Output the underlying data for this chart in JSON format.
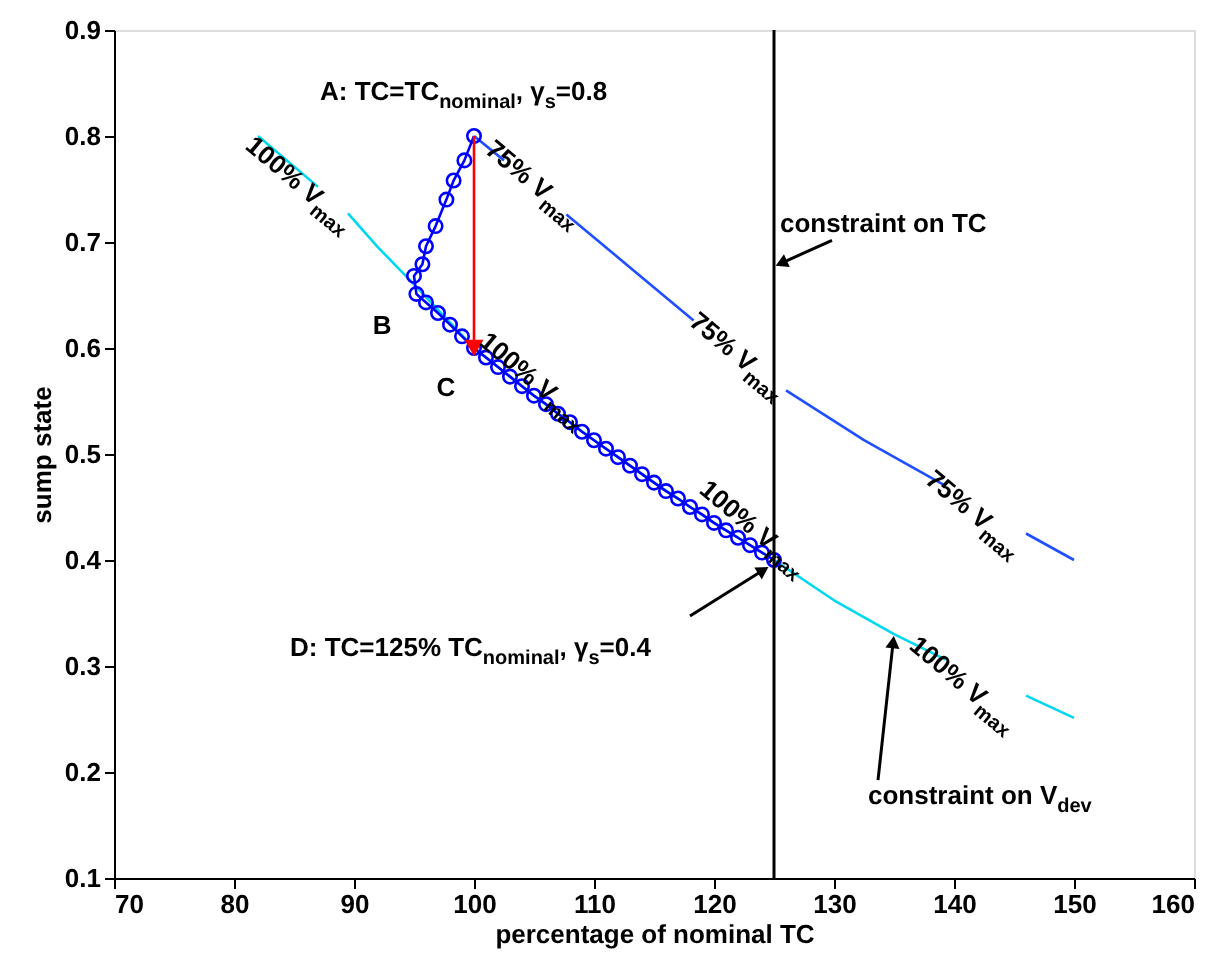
{
  "chart_data": {
    "type": "line",
    "xlabel": "percentage of nominal TC",
    "ylabel": "sump state",
    "xlim": [
      70,
      160
    ],
    "xticks": [
      70,
      80,
      90,
      100,
      110,
      120,
      130,
      140,
      150,
      160
    ],
    "ylim": [
      0.1,
      0.9
    ],
    "yticks": [
      0.1,
      0.2,
      0.3,
      0.4,
      0.5,
      0.6,
      0.7,
      0.8,
      0.9
    ],
    "grid": false,
    "series": [
      {
        "marker": "none",
        "color": "#00d8f0",
        "x": [
          82,
          87,
          88,
          89.5,
          92,
          95,
          100,
          105,
          110,
          115,
          120,
          125,
          130,
          135,
          139.3,
          143,
          146,
          150
        ],
        "values": [
          0.8,
          0.752,
          null,
          0.727,
          0.695,
          0.66,
          0.6,
          0.555,
          0.513,
          0.473,
          0.435,
          0.4,
          0.362,
          0.33,
          0.306,
          null,
          0.272,
          0.251
        ]
      },
      {
        "marker": "none",
        "color": "#1f4fff",
        "x": [
          100,
          102.5,
          104,
          107.7,
          113,
          118.3,
          122,
          126,
          132.5,
          139.3,
          143,
          146,
          150
        ],
        "values": [
          0.8,
          0.777,
          null,
          0.726,
          0.676,
          0.626,
          null,
          0.56,
          0.513,
          0.47,
          null,
          0.425,
          0.4
        ]
      },
      {
        "marker": "circle",
        "color": "#0000ff",
        "x": [
          100,
          99.2,
          98.3,
          97.7,
          96.8,
          96,
          95.7,
          95,
          95.2,
          96,
          97,
          98,
          99,
          100,
          101,
          102,
          103,
          104,
          105,
          106,
          107,
          108,
          109,
          110,
          111,
          112,
          113,
          114,
          115,
          116,
          117,
          118,
          119,
          120,
          121,
          122,
          123,
          124,
          125
        ],
        "values": [
          0.8,
          0.777,
          0.758,
          0.74,
          0.715,
          0.696,
          0.679,
          0.668,
          0.651,
          0.643,
          0.633,
          0.622,
          0.611,
          0.6,
          0.591,
          0.582,
          0.573,
          0.564,
          0.555,
          0.547,
          0.538,
          0.53,
          0.521,
          0.513,
          0.505,
          0.497,
          0.489,
          0.481,
          0.473,
          0.465,
          0.458,
          0.45,
          0.443,
          0.435,
          0.428,
          0.421,
          0.414,
          0.407,
          0.4
        ]
      },
      {
        "marker": "triangle",
        "color": "#ff0000",
        "x": [
          100,
          100
        ],
        "values": [
          0.8,
          0.6
        ]
      }
    ],
    "ref_lines": [
      {
        "axis": "x",
        "value": 125,
        "color": "#000000"
      }
    ],
    "annotations": [
      {
        "text": "A: TC=TC$_{nominal}$, γ$_{s}$=0.8",
        "x": 100,
        "y": 0.8
      },
      {
        "text": "B",
        "x": 95,
        "y": 0.66
      },
      {
        "text": "C",
        "x": 100,
        "y": 0.6
      },
      "D: TC=125% TC$_{nominal}$, γ$_{s}$=0.4",
      {
        "text": "constraint on TC",
        "x": 125,
        "y": 0.677
      },
      {
        "text": "constraint on V$_{dev}$",
        "x": 135,
        "y": 0.33
      },
      "100% V$_{max}$",
      "75% V$_{max}$",
      "100% V$_{max}$",
      "75% V$_{max}$",
      "100% V$_{max}$",
      "75% V$_{max}$",
      "100% V$_{max}$"
    ]
  }
}
